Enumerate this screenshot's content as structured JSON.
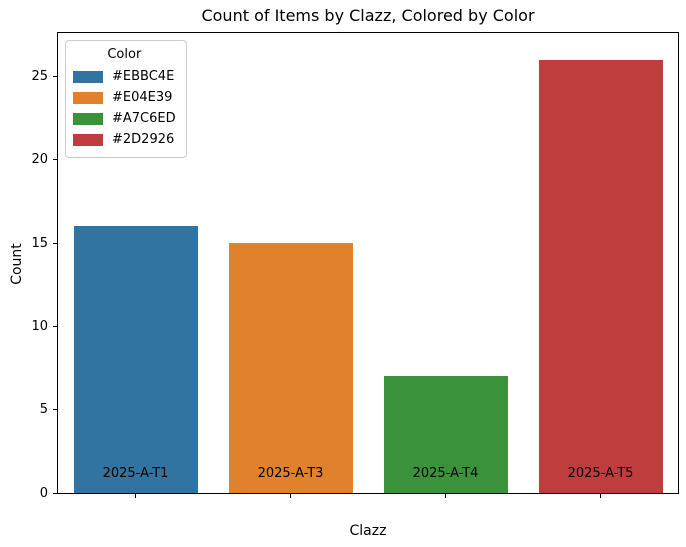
{
  "chart_data": {
    "type": "bar",
    "title": "Count of Items by Clazz, Colored by Color",
    "xlabel": "Clazz",
    "ylabel": "Count",
    "categories": [
      "2025-A-T1",
      "2025-A-T3",
      "2025-A-T4",
      "2025-A-T5"
    ],
    "values": [
      16,
      15,
      7,
      26
    ],
    "bar_colors": [
      "#3274A1",
      "#E1812C",
      "#3A923A",
      "#C03D3E"
    ],
    "bar_width_fraction": 0.8,
    "ylim": [
      0,
      27.6
    ],
    "yticks": [
      0,
      5,
      10,
      15,
      20,
      25
    ],
    "grid": false,
    "legend": {
      "title": "Color",
      "position": "upper left",
      "entries": [
        {
          "label": "#EBBC4E",
          "color": "#3274A1"
        },
        {
          "label": "#E04E39",
          "color": "#E1812C"
        },
        {
          "label": "#A7C6ED",
          "color": "#3A923A"
        },
        {
          "label": "#2D2926",
          "color": "#C03D3E"
        }
      ]
    }
  }
}
